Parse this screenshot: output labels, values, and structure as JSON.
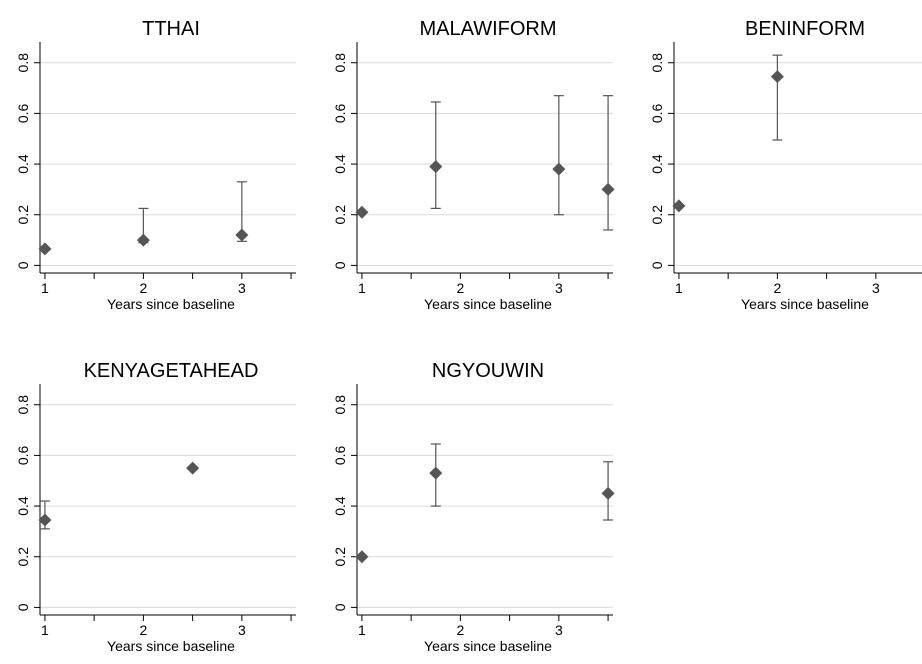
{
  "chart_data": [
    {
      "type": "scatter",
      "title": "TTHAI",
      "xlabel": "Years since baseline",
      "ylabel": "",
      "xlim": [
        0.95,
        3.55
      ],
      "ylim": [
        -0.03,
        0.87
      ],
      "xticks": [
        1,
        2,
        3
      ],
      "yticks": [
        0,
        0.2,
        0.4,
        0.6,
        0.8
      ],
      "ytick_labels": [
        "0",
        "0.2",
        "0.4",
        "0.6",
        "0.8"
      ],
      "grid": true,
      "marker_color": "#555555",
      "points": [
        {
          "x": 1.0,
          "y": 0.065
        },
        {
          "x": 2.0,
          "y": 0.1,
          "lo": 0.09,
          "hi": 0.225
        },
        {
          "x": 3.0,
          "y": 0.12,
          "lo": 0.095,
          "hi": 0.33
        }
      ]
    },
    {
      "type": "scatter",
      "title": "MALAWIFORM",
      "xlabel": "Years since baseline",
      "ylabel": "",
      "xlim": [
        0.95,
        3.55
      ],
      "ylim": [
        -0.03,
        0.87
      ],
      "xticks": [
        1,
        2,
        3
      ],
      "yticks": [
        0,
        0.2,
        0.4,
        0.6,
        0.8
      ],
      "ytick_labels": [
        "0",
        "0.2",
        "0.4",
        "0.6",
        "0.8"
      ],
      "grid": true,
      "marker_color": "#555555",
      "points": [
        {
          "x": 1.0,
          "y": 0.21
        },
        {
          "x": 1.75,
          "y": 0.39,
          "lo": 0.225,
          "hi": 0.645
        },
        {
          "x": 3.0,
          "y": 0.38,
          "lo": 0.2,
          "hi": 0.67
        },
        {
          "x": 3.5,
          "y": 0.3,
          "lo": 0.14,
          "hi": 0.67
        }
      ]
    },
    {
      "type": "scatter",
      "title": "BENINFORM",
      "xlabel": "Years since baseline",
      "ylabel": "",
      "xlim": [
        0.95,
        3.55
      ],
      "ylim": [
        -0.03,
        0.87
      ],
      "xticks": [
        1,
        2,
        3
      ],
      "yticks": [
        0,
        0.2,
        0.4,
        0.6,
        0.8
      ],
      "ytick_labels": [
        "0",
        "0.2",
        "0.4",
        "0.6",
        "0.8"
      ],
      "grid": true,
      "marker_color": "#555555",
      "points": [
        {
          "x": 1.0,
          "y": 0.235
        },
        {
          "x": 2.0,
          "y": 0.745,
          "lo": 0.495,
          "hi": 0.83
        }
      ]
    },
    {
      "type": "scatter",
      "title": "KENYAGETAHEAD",
      "xlabel": "Years since baseline",
      "ylabel": "",
      "xlim": [
        0.95,
        3.55
      ],
      "ylim": [
        -0.03,
        0.87
      ],
      "xticks": [
        1,
        2,
        3
      ],
      "yticks": [
        0,
        0.2,
        0.4,
        0.6,
        0.8
      ],
      "ytick_labels": [
        "0",
        "0.2",
        "0.4",
        "0.6",
        "0.8"
      ],
      "grid": true,
      "marker_color": "#555555",
      "points": [
        {
          "x": 1.0,
          "y": 0.345,
          "lo": 0.31,
          "hi": 0.42
        },
        {
          "x": 2.5,
          "y": 0.55
        }
      ]
    },
    {
      "type": "scatter",
      "title": "NGYOUWIN",
      "xlabel": "Years since baseline",
      "ylabel": "",
      "xlim": [
        0.95,
        3.55
      ],
      "ylim": [
        -0.03,
        0.87
      ],
      "xticks": [
        1,
        2,
        3
      ],
      "yticks": [
        0,
        0.2,
        0.4,
        0.6,
        0.8
      ],
      "ytick_labels": [
        "0",
        "0.2",
        "0.4",
        "0.6",
        "0.8"
      ],
      "grid": true,
      "marker_color": "#555555",
      "points": [
        {
          "x": 1.0,
          "y": 0.2
        },
        {
          "x": 1.75,
          "y": 0.53,
          "lo": 0.4,
          "hi": 0.645
        },
        {
          "x": 3.5,
          "y": 0.45,
          "lo": 0.345,
          "hi": 0.575
        }
      ]
    }
  ]
}
